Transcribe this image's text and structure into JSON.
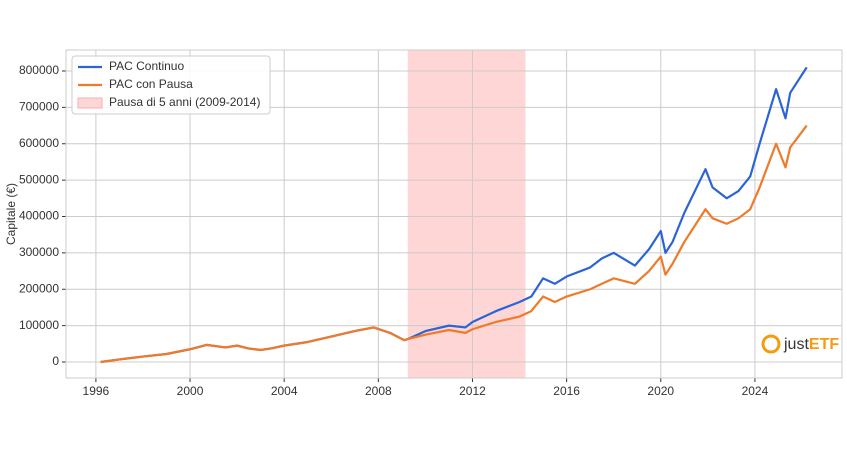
{
  "chart_data": {
    "type": "line",
    "y_label": "Capitale (€)",
    "x": [
      1996.2,
      1997,
      1998,
      1999,
      2000,
      2000.7,
      2001.5,
      2002,
      2002.5,
      2003,
      2003.5,
      2004,
      2005,
      2006,
      2007,
      2007.8,
      2008.5,
      2009.1,
      2009.25,
      2010,
      2011,
      2011.7,
      2012,
      2013,
      2014,
      2014.5,
      2015,
      2015.5,
      2016,
      2017,
      2017.5,
      2018,
      2018.9,
      2019.5,
      2020,
      2020.2,
      2020.5,
      2021,
      2021.9,
      2022.2,
      2022.8,
      2023.3,
      2023.8,
      2024.2,
      2024.9,
      2025.3,
      2025.5,
      2026.2
    ],
    "series": [
      {
        "name": "PAC Continuo",
        "color": "#2c64d6",
        "values": [
          0,
          7000,
          15000,
          22000,
          35000,
          47000,
          40000,
          45000,
          37000,
          33000,
          38000,
          45000,
          55000,
          70000,
          85000,
          95000,
          80000,
          60000,
          63000,
          85000,
          100000,
          95000,
          110000,
          140000,
          165000,
          180000,
          230000,
          215000,
          235000,
          260000,
          285000,
          300000,
          265000,
          310000,
          360000,
          300000,
          330000,
          410000,
          530000,
          480000,
          450000,
          470000,
          510000,
          600000,
          750000,
          670000,
          740000,
          810000
        ]
      },
      {
        "name": "PAC con Pausa",
        "color": "#ef7a29",
        "values": [
          0,
          7000,
          15000,
          22000,
          35000,
          47000,
          40000,
          45000,
          37000,
          33000,
          38000,
          45000,
          55000,
          70000,
          85000,
          95000,
          80000,
          60000,
          63000,
          75000,
          88000,
          80000,
          90000,
          110000,
          125000,
          140000,
          180000,
          165000,
          180000,
          200000,
          215000,
          230000,
          215000,
          250000,
          290000,
          240000,
          270000,
          330000,
          420000,
          395000,
          380000,
          395000,
          420000,
          480000,
          600000,
          535000,
          590000,
          650000
        ]
      }
    ],
    "span": {
      "name": "Pausa di 5 anni (2009-2014)",
      "color": "#ffd6d6",
      "x": [
        2009.25,
        2014.25
      ]
    },
    "xlim": [
      1994.73,
      2027.7
    ],
    "ylim": [
      -44000,
      857700
    ],
    "xticks": [
      1996,
      2000,
      2004,
      2008,
      2012,
      2016,
      2020,
      2024
    ],
    "yticks": [
      0,
      100000,
      200000,
      300000,
      400000,
      500000,
      600000,
      700000,
      800000
    ],
    "grid": true,
    "legend": "upper left"
  },
  "logo": {
    "part1": "just",
    "part2": "ETF"
  }
}
